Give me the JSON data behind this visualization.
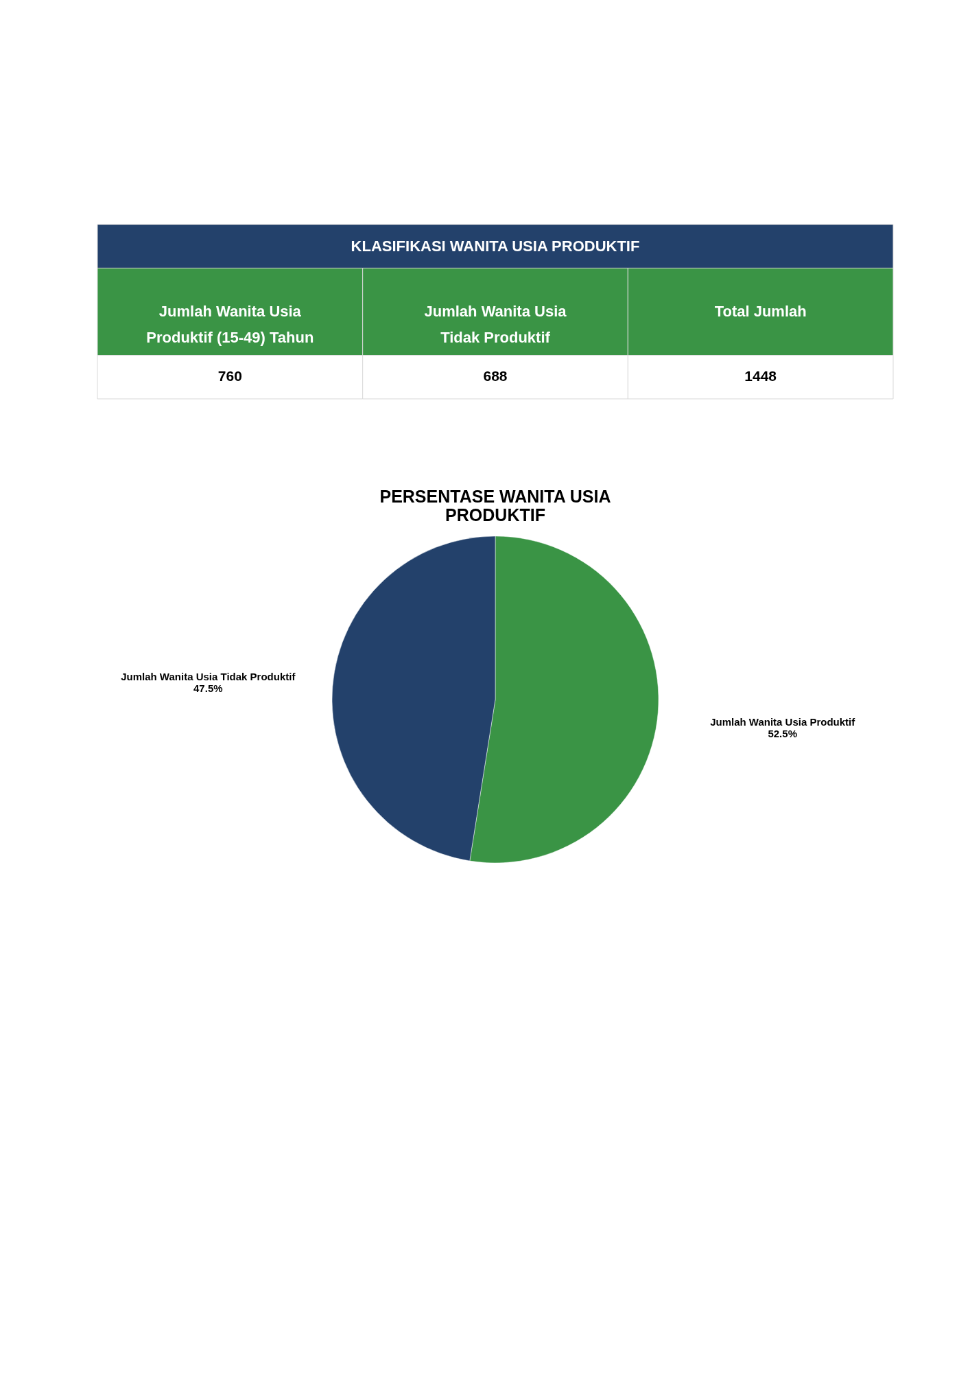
{
  "chart_data": [
    {
      "type": "other",
      "title": "KLASIFIKASI WANITA USIA PRODUKTIF",
      "categories": [
        "Jumlah Wanita Usia Produktif (15-49) Tahun",
        "Jumlah Wanita Usia Tidak Produktif",
        "Total Jumlah"
      ],
      "values": [
        760,
        688,
        1448
      ],
      "data_labels": true
    },
    {
      "type": "pie",
      "title": "PERSENTASE WANITA USIA PRODUKTIF",
      "categories": [
        "Jumlah Wanita Usia Produktif",
        "Jumlah Wanita Usia Tidak Produktif"
      ],
      "values": [
        52.5,
        47.5
      ],
      "colors": [
        "#3a9445",
        "#23416b"
      ],
      "value_labels": [
        "52.5%",
        "47.5%"
      ]
    }
  ]
}
